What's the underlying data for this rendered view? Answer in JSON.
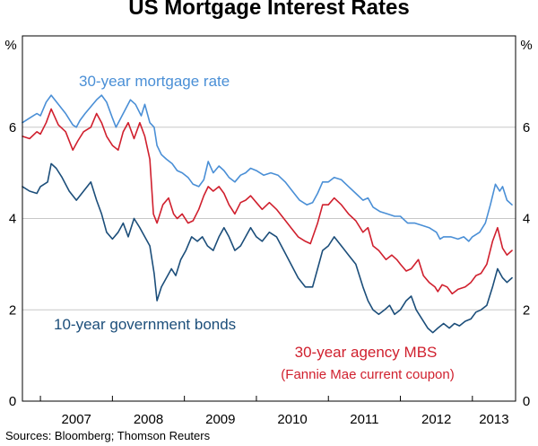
{
  "chart_data": {
    "type": "line",
    "title": "US Mortgage Interest Rates",
    "source": "Sources: Bloomberg; Thomson Reuters",
    "y_unit": "%",
    "y_unit_right": "%",
    "ylim": [
      0,
      8
    ],
    "yticks": [
      "0",
      "2",
      "4",
      "6"
    ],
    "xlim": [
      2006.75,
      2013.6
    ],
    "xticks": [
      "2007",
      "2008",
      "2009",
      "2010",
      "2011",
      "2012",
      "2013"
    ],
    "grid": true,
    "series": [
      {
        "name": "30-year mortgage rate",
        "color": "#4a8fd6",
        "annotation": "30-year mortgage rate",
        "points": [
          [
            2006.75,
            6.1
          ],
          [
            2006.85,
            6.2
          ],
          [
            2006.95,
            6.3
          ],
          [
            2007.0,
            6.25
          ],
          [
            2007.08,
            6.55
          ],
          [
            2007.15,
            6.7
          ],
          [
            2007.25,
            6.5
          ],
          [
            2007.35,
            6.3
          ],
          [
            2007.45,
            6.05
          ],
          [
            2007.5,
            6.0
          ],
          [
            2007.55,
            6.15
          ],
          [
            2007.62,
            6.3
          ],
          [
            2007.7,
            6.45
          ],
          [
            2007.78,
            6.6
          ],
          [
            2007.85,
            6.7
          ],
          [
            2007.92,
            6.55
          ],
          [
            2008.0,
            6.2
          ],
          [
            2008.05,
            6.0
          ],
          [
            2008.15,
            6.3
          ],
          [
            2008.25,
            6.6
          ],
          [
            2008.32,
            6.5
          ],
          [
            2008.4,
            6.25
          ],
          [
            2008.45,
            6.5
          ],
          [
            2008.52,
            6.1
          ],
          [
            2008.58,
            6.0
          ],
          [
            2008.62,
            5.6
          ],
          [
            2008.68,
            5.4
          ],
          [
            2008.75,
            5.3
          ],
          [
            2008.83,
            5.2
          ],
          [
            2008.9,
            5.05
          ],
          [
            2008.97,
            5.0
          ],
          [
            2009.05,
            4.9
          ],
          [
            2009.12,
            4.75
          ],
          [
            2009.2,
            4.7
          ],
          [
            2009.27,
            4.85
          ],
          [
            2009.33,
            5.25
          ],
          [
            2009.4,
            5.0
          ],
          [
            2009.48,
            5.15
          ],
          [
            2009.55,
            5.05
          ],
          [
            2009.62,
            4.9
          ],
          [
            2009.7,
            4.8
          ],
          [
            2009.78,
            4.95
          ],
          [
            2009.85,
            5.0
          ],
          [
            2009.92,
            5.1
          ],
          [
            2010.0,
            5.05
          ],
          [
            2010.1,
            4.95
          ],
          [
            2010.2,
            5.0
          ],
          [
            2010.3,
            4.95
          ],
          [
            2010.4,
            4.8
          ],
          [
            2010.5,
            4.6
          ],
          [
            2010.6,
            4.4
          ],
          [
            2010.7,
            4.3
          ],
          [
            2010.78,
            4.35
          ],
          [
            2010.85,
            4.55
          ],
          [
            2010.92,
            4.8
          ],
          [
            2011.0,
            4.8
          ],
          [
            2011.08,
            4.9
          ],
          [
            2011.18,
            4.85
          ],
          [
            2011.28,
            4.7
          ],
          [
            2011.38,
            4.55
          ],
          [
            2011.48,
            4.4
          ],
          [
            2011.55,
            4.45
          ],
          [
            2011.62,
            4.25
          ],
          [
            2011.72,
            4.15
          ],
          [
            2011.82,
            4.1
          ],
          [
            2011.92,
            4.05
          ],
          [
            2012.0,
            4.05
          ],
          [
            2012.1,
            3.9
          ],
          [
            2012.2,
            3.9
          ],
          [
            2012.3,
            3.85
          ],
          [
            2012.4,
            3.8
          ],
          [
            2012.5,
            3.7
          ],
          [
            2012.55,
            3.55
          ],
          [
            2012.6,
            3.6
          ],
          [
            2012.7,
            3.6
          ],
          [
            2012.8,
            3.55
          ],
          [
            2012.88,
            3.6
          ],
          [
            2012.95,
            3.5
          ],
          [
            2013.0,
            3.6
          ],
          [
            2013.1,
            3.7
          ],
          [
            2013.18,
            3.9
          ],
          [
            2013.25,
            4.3
          ],
          [
            2013.32,
            4.75
          ],
          [
            2013.38,
            4.6
          ],
          [
            2013.42,
            4.7
          ],
          [
            2013.48,
            4.4
          ],
          [
            2013.55,
            4.3
          ]
        ]
      },
      {
        "name": "30-year agency MBS",
        "subtitle": "(Fannie Mae current coupon)",
        "color": "#d0202e",
        "annotation": "30-year agency MBS",
        "annotation_sub": "(Fannie Mae current coupon)",
        "points": [
          [
            2006.75,
            5.8
          ],
          [
            2006.85,
            5.75
          ],
          [
            2006.95,
            5.9
          ],
          [
            2007.0,
            5.85
          ],
          [
            2007.08,
            6.1
          ],
          [
            2007.15,
            6.4
          ],
          [
            2007.25,
            6.05
          ],
          [
            2007.35,
            5.9
          ],
          [
            2007.45,
            5.5
          ],
          [
            2007.52,
            5.7
          ],
          [
            2007.6,
            5.9
          ],
          [
            2007.7,
            6.0
          ],
          [
            2007.78,
            6.3
          ],
          [
            2007.85,
            6.1
          ],
          [
            2007.92,
            5.8
          ],
          [
            2008.0,
            5.6
          ],
          [
            2008.08,
            5.5
          ],
          [
            2008.15,
            5.9
          ],
          [
            2008.22,
            6.1
          ],
          [
            2008.3,
            5.75
          ],
          [
            2008.38,
            6.1
          ],
          [
            2008.45,
            5.8
          ],
          [
            2008.52,
            5.3
          ],
          [
            2008.57,
            4.1
          ],
          [
            2008.62,
            3.9
          ],
          [
            2008.7,
            4.3
          ],
          [
            2008.78,
            4.45
          ],
          [
            2008.85,
            4.1
          ],
          [
            2008.9,
            4.0
          ],
          [
            2008.97,
            4.1
          ],
          [
            2009.05,
            3.9
          ],
          [
            2009.12,
            3.95
          ],
          [
            2009.2,
            4.2
          ],
          [
            2009.27,
            4.5
          ],
          [
            2009.33,
            4.7
          ],
          [
            2009.4,
            4.6
          ],
          [
            2009.48,
            4.7
          ],
          [
            2009.55,
            4.55
          ],
          [
            2009.62,
            4.3
          ],
          [
            2009.7,
            4.1
          ],
          [
            2009.78,
            4.35
          ],
          [
            2009.85,
            4.4
          ],
          [
            2009.92,
            4.5
          ],
          [
            2010.0,
            4.35
          ],
          [
            2010.08,
            4.2
          ],
          [
            2010.18,
            4.35
          ],
          [
            2010.28,
            4.2
          ],
          [
            2010.38,
            4.0
          ],
          [
            2010.48,
            3.8
          ],
          [
            2010.58,
            3.6
          ],
          [
            2010.68,
            3.5
          ],
          [
            2010.75,
            3.45
          ],
          [
            2010.85,
            3.9
          ],
          [
            2010.92,
            4.3
          ],
          [
            2011.0,
            4.3
          ],
          [
            2011.08,
            4.45
          ],
          [
            2011.18,
            4.3
          ],
          [
            2011.28,
            4.1
          ],
          [
            2011.38,
            3.95
          ],
          [
            2011.48,
            3.7
          ],
          [
            2011.55,
            3.8
          ],
          [
            2011.62,
            3.4
          ],
          [
            2011.7,
            3.3
          ],
          [
            2011.8,
            3.1
          ],
          [
            2011.88,
            3.2
          ],
          [
            2011.95,
            3.1
          ],
          [
            2012.0,
            3.0
          ],
          [
            2012.08,
            2.85
          ],
          [
            2012.15,
            2.9
          ],
          [
            2012.25,
            3.1
          ],
          [
            2012.32,
            2.75
          ],
          [
            2012.4,
            2.6
          ],
          [
            2012.48,
            2.5
          ],
          [
            2012.52,
            2.4
          ],
          [
            2012.58,
            2.55
          ],
          [
            2012.65,
            2.5
          ],
          [
            2012.72,
            2.35
          ],
          [
            2012.8,
            2.45
          ],
          [
            2012.9,
            2.5
          ],
          [
            2012.98,
            2.6
          ],
          [
            2013.05,
            2.75
          ],
          [
            2013.12,
            2.8
          ],
          [
            2013.2,
            3.0
          ],
          [
            2013.28,
            3.5
          ],
          [
            2013.35,
            3.8
          ],
          [
            2013.42,
            3.35
          ],
          [
            2013.48,
            3.2
          ],
          [
            2013.55,
            3.3
          ]
        ]
      },
      {
        "name": "10-year government bonds",
        "color": "#1c4e7a",
        "annotation": "10-year government bonds",
        "points": [
          [
            2006.75,
            4.7
          ],
          [
            2006.85,
            4.6
          ],
          [
            2006.95,
            4.55
          ],
          [
            2007.0,
            4.7
          ],
          [
            2007.1,
            4.8
          ],
          [
            2007.15,
            5.2
          ],
          [
            2007.22,
            5.1
          ],
          [
            2007.3,
            4.9
          ],
          [
            2007.4,
            4.6
          ],
          [
            2007.5,
            4.4
          ],
          [
            2007.6,
            4.6
          ],
          [
            2007.7,
            4.8
          ],
          [
            2007.78,
            4.4
          ],
          [
            2007.85,
            4.1
          ],
          [
            2007.92,
            3.7
          ],
          [
            2008.0,
            3.55
          ],
          [
            2008.08,
            3.7
          ],
          [
            2008.15,
            3.9
          ],
          [
            2008.22,
            3.6
          ],
          [
            2008.3,
            4.0
          ],
          [
            2008.38,
            3.8
          ],
          [
            2008.45,
            3.6
          ],
          [
            2008.52,
            3.4
          ],
          [
            2008.58,
            2.8
          ],
          [
            2008.62,
            2.2
          ],
          [
            2008.68,
            2.5
          ],
          [
            2008.75,
            2.7
          ],
          [
            2008.82,
            2.9
          ],
          [
            2008.88,
            2.75
          ],
          [
            2008.95,
            3.1
          ],
          [
            2009.02,
            3.3
          ],
          [
            2009.1,
            3.6
          ],
          [
            2009.18,
            3.5
          ],
          [
            2009.25,
            3.6
          ],
          [
            2009.32,
            3.4
          ],
          [
            2009.4,
            3.3
          ],
          [
            2009.48,
            3.6
          ],
          [
            2009.55,
            3.8
          ],
          [
            2009.62,
            3.6
          ],
          [
            2009.7,
            3.3
          ],
          [
            2009.78,
            3.4
          ],
          [
            2009.85,
            3.6
          ],
          [
            2009.92,
            3.8
          ],
          [
            2010.0,
            3.6
          ],
          [
            2010.08,
            3.5
          ],
          [
            2010.18,
            3.7
          ],
          [
            2010.28,
            3.6
          ],
          [
            2010.38,
            3.3
          ],
          [
            2010.48,
            3.0
          ],
          [
            2010.58,
            2.7
          ],
          [
            2010.68,
            2.5
          ],
          [
            2010.78,
            2.5
          ],
          [
            2010.85,
            2.9
          ],
          [
            2010.92,
            3.3
          ],
          [
            2011.0,
            3.4
          ],
          [
            2011.08,
            3.6
          ],
          [
            2011.18,
            3.4
          ],
          [
            2011.28,
            3.2
          ],
          [
            2011.38,
            3.0
          ],
          [
            2011.48,
            2.5
          ],
          [
            2011.55,
            2.2
          ],
          [
            2011.62,
            2.0
          ],
          [
            2011.7,
            1.9
          ],
          [
            2011.78,
            2.0
          ],
          [
            2011.85,
            2.1
          ],
          [
            2011.92,
            1.9
          ],
          [
            2012.0,
            2.0
          ],
          [
            2012.08,
            2.2
          ],
          [
            2012.15,
            2.3
          ],
          [
            2012.22,
            2.0
          ],
          [
            2012.3,
            1.8
          ],
          [
            2012.38,
            1.6
          ],
          [
            2012.45,
            1.5
          ],
          [
            2012.52,
            1.6
          ],
          [
            2012.6,
            1.7
          ],
          [
            2012.68,
            1.6
          ],
          [
            2012.75,
            1.7
          ],
          [
            2012.82,
            1.65
          ],
          [
            2012.9,
            1.75
          ],
          [
            2012.98,
            1.8
          ],
          [
            2013.05,
            1.95
          ],
          [
            2013.12,
            2.0
          ],
          [
            2013.2,
            2.1
          ],
          [
            2013.28,
            2.5
          ],
          [
            2013.35,
            2.9
          ],
          [
            2013.42,
            2.7
          ],
          [
            2013.48,
            2.6
          ],
          [
            2013.55,
            2.7
          ]
        ]
      }
    ]
  }
}
